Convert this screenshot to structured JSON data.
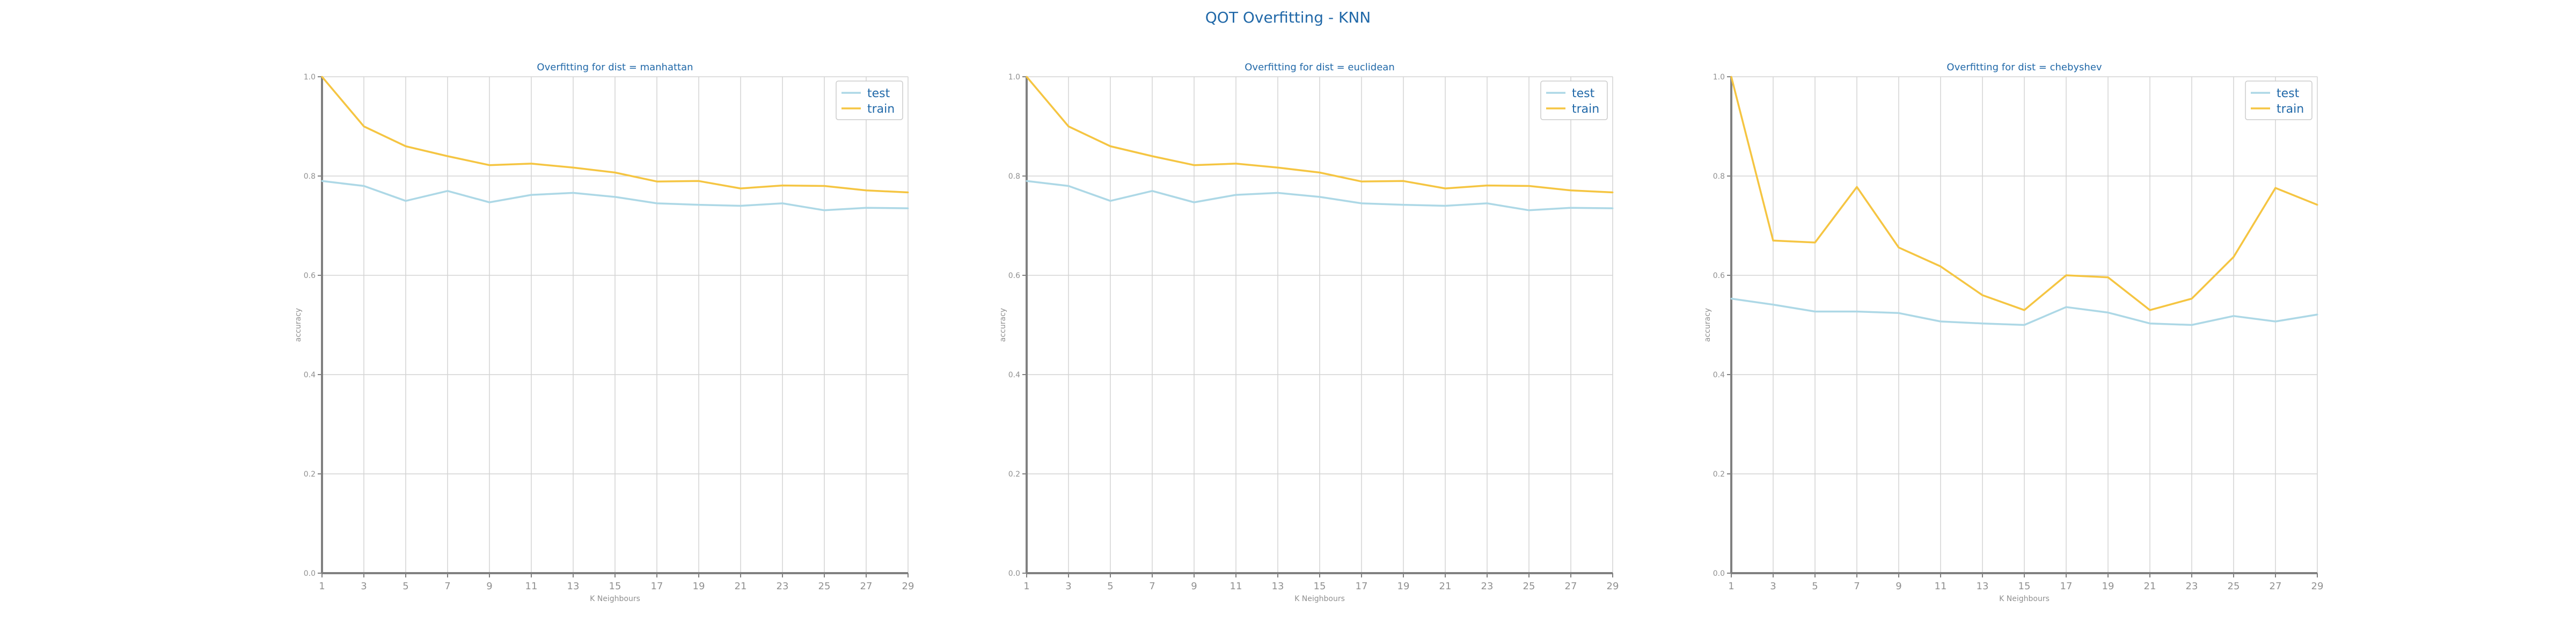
{
  "figure_title": "QOT Overfitting - KNN",
  "colors": {
    "test": "#add8e6",
    "train": "#f5c542",
    "title": "#2068a8",
    "grid": "#d3d3d3",
    "axis": "#808080",
    "tick_text": "#909090"
  },
  "chart_data": [
    {
      "type": "line",
      "title": "Overfitting for dist = manhattan",
      "xlabel": "K Neighbours",
      "ylabel": "accuracy",
      "x": [
        1,
        3,
        5,
        7,
        9,
        11,
        13,
        15,
        17,
        19,
        21,
        23,
        25,
        27,
        29
      ],
      "xticks": [
        "1",
        "3",
        "5",
        "7",
        "9",
        "11",
        "13",
        "15",
        "17",
        "19",
        "21",
        "23",
        "25",
        "27",
        "29"
      ],
      "yticks": [
        "0.0",
        "0.2",
        "0.4",
        "0.6",
        "0.8",
        "1.0"
      ],
      "xlim": [
        1,
        29
      ],
      "ylim": [
        0,
        1
      ],
      "grid": true,
      "legend": "top-right",
      "series": [
        {
          "name": "test",
          "values": [
            0.79,
            0.78,
            0.75,
            0.77,
            0.747,
            0.762,
            0.766,
            0.758,
            0.745,
            0.742,
            0.74,
            0.745,
            0.731,
            0.736,
            0.735
          ]
        },
        {
          "name": "train",
          "values": [
            1.0,
            0.9,
            0.86,
            0.84,
            0.822,
            0.825,
            0.817,
            0.807,
            0.789,
            0.79,
            0.775,
            0.781,
            0.78,
            0.771,
            0.767
          ]
        }
      ]
    },
    {
      "type": "line",
      "title": "Overfitting for dist = euclidean",
      "xlabel": "K Neighbours",
      "ylabel": "accuracy",
      "x": [
        1,
        3,
        5,
        7,
        9,
        11,
        13,
        15,
        17,
        19,
        21,
        23,
        25,
        27,
        29
      ],
      "xticks": [
        "1",
        "3",
        "5",
        "7",
        "9",
        "11",
        "13",
        "15",
        "17",
        "19",
        "21",
        "23",
        "25",
        "27",
        "29"
      ],
      "yticks": [
        "0.0",
        "0.2",
        "0.4",
        "0.6",
        "0.8",
        "1.0"
      ],
      "xlim": [
        1,
        29
      ],
      "ylim": [
        0,
        1
      ],
      "grid": true,
      "legend": "top-right",
      "series": [
        {
          "name": "test",
          "values": [
            0.79,
            0.78,
            0.75,
            0.77,
            0.747,
            0.762,
            0.766,
            0.758,
            0.745,
            0.742,
            0.74,
            0.745,
            0.731,
            0.736,
            0.735
          ]
        },
        {
          "name": "train",
          "values": [
            1.0,
            0.9,
            0.86,
            0.84,
            0.822,
            0.825,
            0.817,
            0.807,
            0.789,
            0.79,
            0.775,
            0.781,
            0.78,
            0.771,
            0.767
          ]
        }
      ]
    },
    {
      "type": "line",
      "title": "Overfitting for dist = chebyshev",
      "xlabel": "K Neighbours",
      "ylabel": "accuracy",
      "x": [
        1,
        3,
        5,
        7,
        9,
        11,
        13,
        15,
        17,
        19,
        21,
        23,
        25,
        27,
        29
      ],
      "xticks": [
        "1",
        "3",
        "5",
        "7",
        "9",
        "11",
        "13",
        "15",
        "17",
        "19",
        "21",
        "23",
        "25",
        "27",
        "29"
      ],
      "yticks": [
        "0.0",
        "0.2",
        "0.4",
        "0.6",
        "0.8",
        "1.0"
      ],
      "xlim": [
        1,
        29
      ],
      "ylim": [
        0,
        1
      ],
      "grid": true,
      "legend": "top-right",
      "series": [
        {
          "name": "test",
          "values": [
            0.553,
            0.541,
            0.527,
            0.527,
            0.524,
            0.507,
            0.503,
            0.5,
            0.536,
            0.525,
            0.503,
            0.5,
            0.518,
            0.507,
            0.521
          ]
        },
        {
          "name": "train",
          "values": [
            1.0,
            0.67,
            0.666,
            0.778,
            0.656,
            0.618,
            0.56,
            0.53,
            0.6,
            0.596,
            0.53,
            0.553,
            0.637,
            0.776,
            0.742
          ]
        }
      ]
    }
  ]
}
